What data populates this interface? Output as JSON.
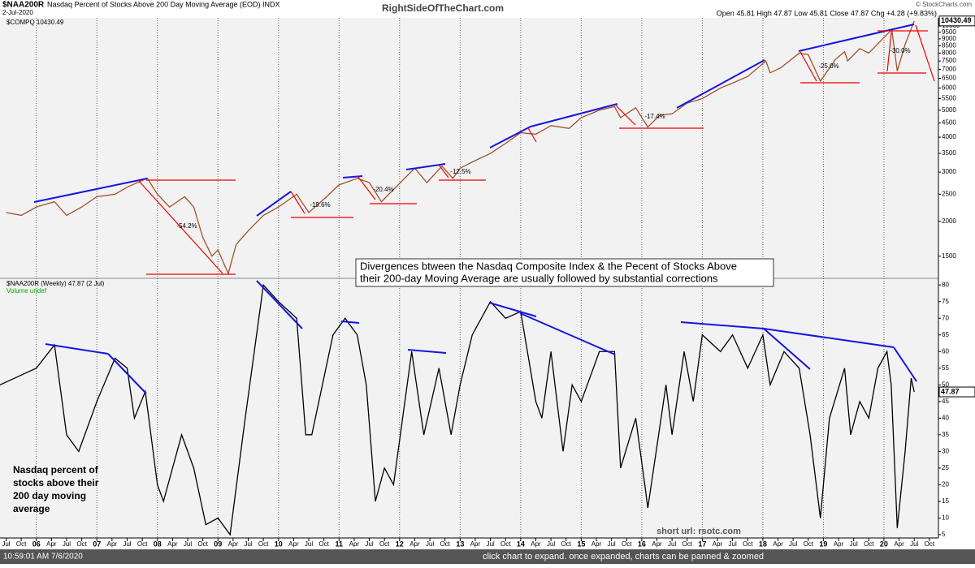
{
  "header": {
    "title": "$NAA200R",
    "subtitle": "Nasdaq Percent of Stocks Above 200 Day Moving Average (EOD) INDX",
    "date": "2-Jul-2020",
    "watermark": "RightSideOfTheChart.com",
    "quote": "Open 45.81  High 47.87  Low 45.81  Close 47.87  Chg +4.28 (+9.83%)",
    "credit": "© StockCharts.com"
  },
  "chart_data": [
    {
      "type": "line",
      "log_scale": true,
      "xlim": [
        2005.4,
        2020.9
      ],
      "ylim": [
        1250,
        10700
      ],
      "yticks": [
        1500,
        2000,
        2500,
        3000,
        3500,
        4000,
        4500,
        5000,
        5500,
        6000,
        6500,
        7000,
        7500,
        8000,
        8500,
        9000,
        9500,
        10000
      ],
      "last_label": "10430.49",
      "x": [
        2005.5,
        2005.75,
        2006.0,
        2006.3,
        2006.5,
        2006.75,
        2007.0,
        2007.3,
        2007.5,
        2007.75,
        2007.83,
        2008.0,
        2008.2,
        2008.45,
        2008.6,
        2008.75,
        2008.9,
        2009.0,
        2009.17,
        2009.3,
        2009.5,
        2009.75,
        2010.0,
        2010.3,
        2010.5,
        2010.75,
        2011.0,
        2011.3,
        2011.5,
        2011.7,
        2011.9,
        2012.25,
        2012.45,
        2012.7,
        2012.88,
        2013.0,
        2013.25,
        2013.5,
        2013.75,
        2014.0,
        2014.25,
        2014.5,
        2014.8,
        2015.0,
        2015.3,
        2015.55,
        2015.65,
        2015.9,
        2016.1,
        2016.3,
        2016.5,
        2016.75,
        2017.0,
        2017.3,
        2017.5,
        2017.75,
        2018.05,
        2018.12,
        2018.3,
        2018.6,
        2018.75,
        2018.95,
        2019.2,
        2019.35,
        2019.4,
        2019.6,
        2019.75,
        2020.0,
        2020.13,
        2020.22,
        2020.35,
        2020.5
      ],
      "series": [
        {
          "name": "$COMPQ 10430.49",
          "color": "#a0522d",
          "values": [
            2150,
            2100,
            2250,
            2350,
            2100,
            2250,
            2450,
            2500,
            2650,
            2800,
            2860,
            2500,
            2250,
            2450,
            2250,
            1750,
            1500,
            1580,
            1300,
            1650,
            1850,
            2100,
            2250,
            2500,
            2150,
            2400,
            2700,
            2850,
            2750,
            2350,
            2600,
            3100,
            2750,
            3150,
            2850,
            3100,
            3300,
            3500,
            3800,
            4150,
            4100,
            4400,
            4300,
            4700,
            5000,
            5150,
            4700,
            5100,
            4350,
            4800,
            4850,
            5300,
            5500,
            6000,
            6250,
            6600,
            7500,
            6800,
            7100,
            8000,
            7900,
            6350,
            7600,
            8100,
            7500,
            8300,
            8000,
            9100,
            9700,
            6900,
            8600,
            10430.49
          ]
        }
      ],
      "annotations": [
        "-54.2%",
        "-19.6%",
        "-20.4%",
        "-12.5%",
        "-17.4%",
        "-25.0%",
        "-30.0%",
        "Divergences btween the Nasdaq Composite Index & the Pecent of Stocks Above",
        "their 200-day Moving Average are usually followed by substantial corrections"
      ]
    },
    {
      "type": "line",
      "log_scale": false,
      "xlim": [
        2005.4,
        2020.9
      ],
      "ylim": [
        4,
        82
      ],
      "grid": true,
      "yticks": [
        5,
        10,
        15,
        20,
        25,
        30,
        35,
        40,
        45,
        50,
        55,
        60,
        65,
        70,
        75,
        80
      ],
      "last_label": "47.87",
      "volume": "Volume undef",
      "xticks": [
        {
          "value": 2005.5,
          "label": "Jul"
        },
        {
          "value": 2005.75,
          "label": "Oct"
        },
        {
          "value": 2006,
          "label": "06"
        },
        {
          "value": 2006.25,
          "label": "Apr"
        },
        {
          "value": 2006.5,
          "label": "Jul"
        },
        {
          "value": 2006.75,
          "label": "Oct"
        },
        {
          "value": 2007,
          "label": "07"
        },
        {
          "value": 2007.25,
          "label": "Apr"
        },
        {
          "value": 2007.5,
          "label": "Jul"
        },
        {
          "value": 2007.75,
          "label": "Oct"
        },
        {
          "value": 2008,
          "label": "08"
        },
        {
          "value": 2008.25,
          "label": "Apr"
        },
        {
          "value": 2008.5,
          "label": "Jul"
        },
        {
          "value": 2008.75,
          "label": "Oct"
        },
        {
          "value": 2009,
          "label": "09"
        },
        {
          "value": 2009.25,
          "label": "Apr"
        },
        {
          "value": 2009.5,
          "label": "Jul"
        },
        {
          "value": 2009.75,
          "label": "Oct"
        },
        {
          "value": 2010,
          "label": "10"
        },
        {
          "value": 2010.25,
          "label": "Apr"
        },
        {
          "value": 2010.5,
          "label": "Jul"
        },
        {
          "value": 2010.75,
          "label": "Oct"
        },
        {
          "value": 2011,
          "label": "11"
        },
        {
          "value": 2011.25,
          "label": "Apr"
        },
        {
          "value": 2011.5,
          "label": "Jul"
        },
        {
          "value": 2011.75,
          "label": "Oct"
        },
        {
          "value": 2012,
          "label": "12"
        },
        {
          "value": 2012.25,
          "label": "Apr"
        },
        {
          "value": 2012.5,
          "label": "Jul"
        },
        {
          "value": 2012.75,
          "label": "Oct"
        },
        {
          "value": 2013,
          "label": "13"
        },
        {
          "value": 2013.25,
          "label": "Apr"
        },
        {
          "value": 2013.5,
          "label": "Jul"
        },
        {
          "value": 2013.75,
          "label": "Oct"
        },
        {
          "value": 2014,
          "label": "14"
        },
        {
          "value": 2014.25,
          "label": "Apr"
        },
        {
          "value": 2014.5,
          "label": "Jul"
        },
        {
          "value": 2014.75,
          "label": "Oct"
        },
        {
          "value": 2015,
          "label": "15"
        },
        {
          "value": 2015.25,
          "label": "Apr"
        },
        {
          "value": 2015.5,
          "label": "Jul"
        },
        {
          "value": 2015.75,
          "label": "Oct"
        },
        {
          "value": 2016,
          "label": "16"
        },
        {
          "value": 2016.25,
          "label": "Apr"
        },
        {
          "value": 2016.5,
          "label": "Jul"
        },
        {
          "value": 2016.75,
          "label": "Oct"
        },
        {
          "value": 2017,
          "label": "17"
        },
        {
          "value": 2017.25,
          "label": "Apr"
        },
        {
          "value": 2017.5,
          "label": "Jul"
        },
        {
          "value": 2017.75,
          "label": "Oct"
        },
        {
          "value": 2018,
          "label": "18"
        },
        {
          "value": 2018.25,
          "label": "Apr"
        },
        {
          "value": 2018.5,
          "label": "Jul"
        },
        {
          "value": 2018.75,
          "label": "Oct"
        },
        {
          "value": 2019,
          "label": "19"
        },
        {
          "value": 2019.25,
          "label": "Apr"
        },
        {
          "value": 2019.5,
          "label": "Jul"
        },
        {
          "value": 2019.75,
          "label": "Oct"
        },
        {
          "value": 2020,
          "label": "20"
        },
        {
          "value": 2020.25,
          "label": "Apr"
        },
        {
          "value": 2020.5,
          "label": "Jul"
        },
        {
          "value": 2020.75,
          "label": "Oct"
        }
      ],
      "x": [
        2005.4,
        2006.0,
        2006.3,
        2006.5,
        2006.7,
        2007.0,
        2007.3,
        2007.5,
        2007.62,
        2007.8,
        2008.0,
        2008.1,
        2008.4,
        2008.6,
        2008.8,
        2009.0,
        2009.2,
        2009.45,
        2009.6,
        2009.75,
        2010.0,
        2010.3,
        2010.45,
        2010.55,
        2010.9,
        2011.1,
        2011.3,
        2011.45,
        2011.6,
        2011.75,
        2011.9,
        2012.2,
        2012.4,
        2012.65,
        2012.85,
        2013.0,
        2013.2,
        2013.5,
        2013.75,
        2014.0,
        2014.25,
        2014.35,
        2014.5,
        2014.7,
        2014.85,
        2015.0,
        2015.3,
        2015.55,
        2015.65,
        2015.9,
        2016.05,
        2016.1,
        2016.4,
        2016.5,
        2016.7,
        2016.85,
        2017.0,
        2017.3,
        2017.5,
        2017.75,
        2018.0,
        2018.12,
        2018.35,
        2018.6,
        2018.78,
        2018.95,
        2019.1,
        2019.35,
        2019.45,
        2019.6,
        2019.75,
        2019.9,
        2020.05,
        2020.12,
        2020.22,
        2020.35,
        2020.45,
        2020.5
      ],
      "series": [
        {
          "name": "$NAA200R (Weekly) 47.87 (2 Jul)",
          "color": "#000000",
          "values": [
            50,
            55,
            62,
            35,
            30,
            45,
            58,
            55,
            40,
            48,
            20,
            15,
            35,
            25,
            8,
            10,
            5,
            40,
            60,
            80,
            75,
            70,
            35,
            35,
            65,
            70,
            65,
            50,
            15,
            25,
            20,
            60,
            35,
            55,
            35,
            50,
            65,
            75,
            70,
            72,
            45,
            40,
            60,
            30,
            50,
            45,
            60,
            60,
            25,
            40,
            20,
            13,
            50,
            35,
            60,
            45,
            65,
            60,
            65,
            55,
            65,
            50,
            60,
            55,
            35,
            10,
            40,
            55,
            35,
            45,
            40,
            55,
            60,
            50,
            7,
            30,
            52,
            47.87
          ]
        }
      ],
      "annotations": [
        "Nasdaq percent of",
        "stocks above their",
        "200 day moving",
        "average",
        "short url: rsotc.com"
      ]
    }
  ],
  "footer": {
    "time": "10:59:01 AM 7/6/2020",
    "note": "click chart to expand. once expanded, charts can be panned & zoomed"
  }
}
